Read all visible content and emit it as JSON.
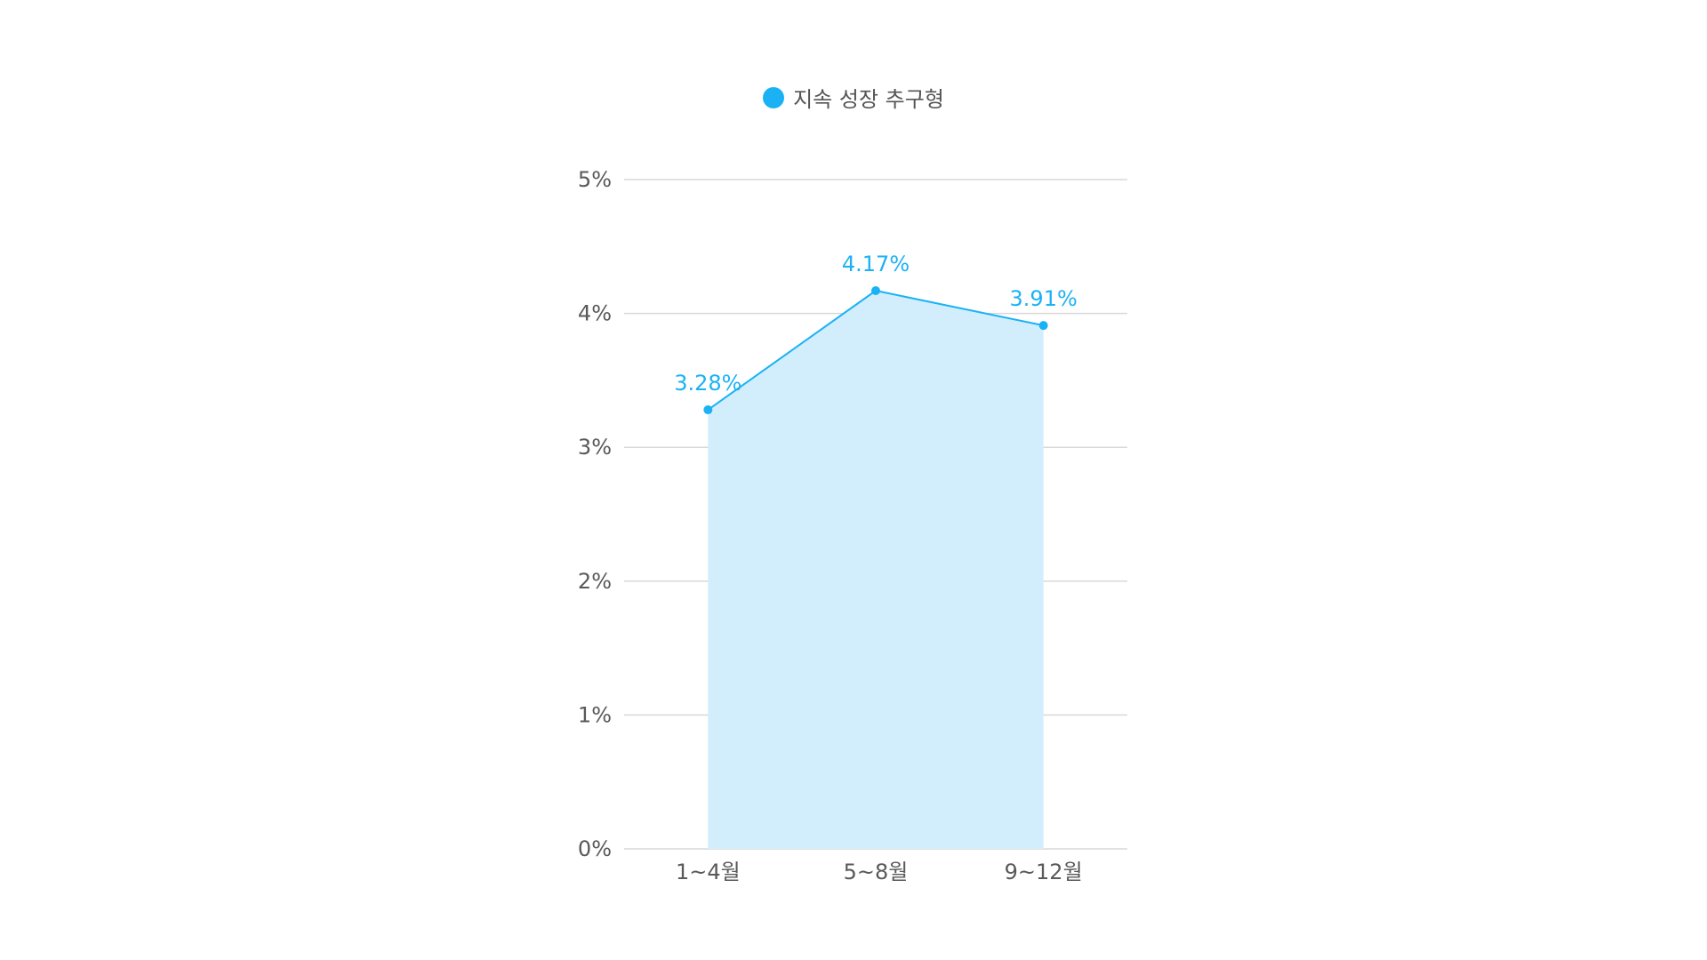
{
  "chart_data": {
    "type": "area",
    "categories": [
      "1~4월",
      "5~8월",
      "9~12월"
    ],
    "series": [
      {
        "name": "지속 성장 추구형",
        "values": [
          3.28,
          4.17,
          3.91
        ],
        "data_labels": [
          "3.28%",
          "4.17%",
          "3.91%"
        ],
        "color": "#1AB2F5",
        "fill_color": "#D2EEFC"
      }
    ],
    "ylim": [
      0,
      5
    ],
    "yticks": [
      0,
      1,
      2,
      3,
      4,
      5
    ],
    "ytick_labels": [
      "0%",
      "1%",
      "2%",
      "3%",
      "4%",
      "5%"
    ],
    "grid": true,
    "legend": "top-center",
    "title": "",
    "xlabel": "",
    "ylabel": ""
  },
  "colors": {
    "grid": "#D9D9D9",
    "axis_text": "#595959"
  }
}
